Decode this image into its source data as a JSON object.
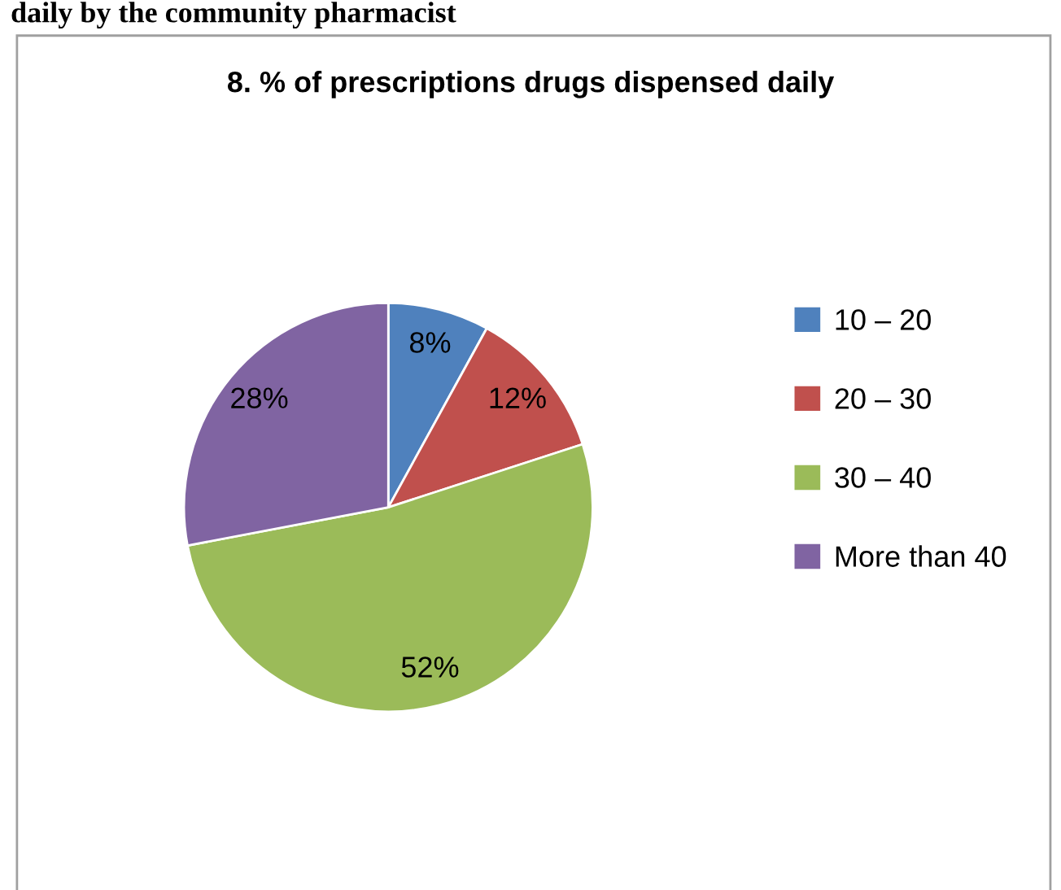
{
  "chart_data": {
    "type": "pie",
    "title": "8. % of prescriptions drugs dispensed daily",
    "annotations": [
      "daily by the community pharmacist"
    ],
    "categories": [
      "10 – 20",
      "20 – 30",
      "30 – 40",
      "More than 40"
    ],
    "values": [
      8,
      12,
      52,
      28
    ],
    "colors": [
      "#4f81bd",
      "#c0504d",
      "#9bbb59",
      "#8064a2"
    ],
    "value_labels": [
      "8%",
      "12%",
      "52%",
      "28%"
    ],
    "legend": "right"
  }
}
